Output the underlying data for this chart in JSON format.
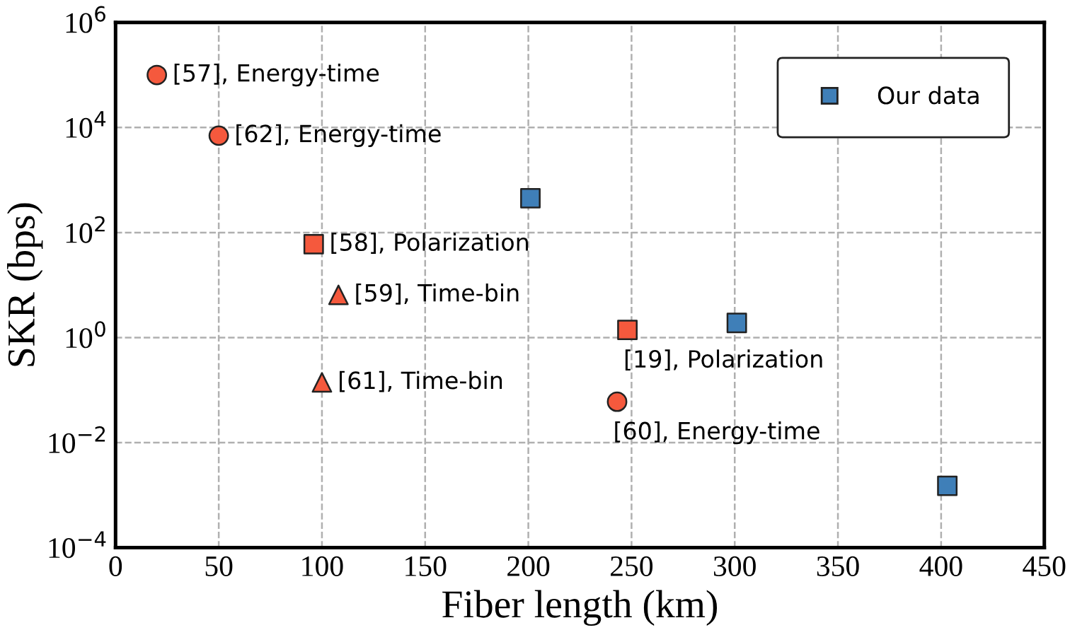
{
  "chart_data": {
    "type": "scatter",
    "xlabel": "Fiber length (km)",
    "ylabel": "SKR (bps)",
    "log": "y",
    "xlim": [
      0,
      450
    ],
    "xticks": [
      0,
      50,
      100,
      150,
      200,
      250,
      300,
      350,
      400,
      450
    ],
    "ylim": [
      0.0001,
      1000000
    ],
    "yticks": [
      {
        "value": 0.0001,
        "label": "10$^{−4}$"
      },
      {
        "value": 0.01,
        "label": "10$^{−2}$"
      },
      {
        "value": 1,
        "label": "10$^{0}$"
      },
      {
        "value": 100,
        "label": "10$^{2}$"
      },
      {
        "value": 10000,
        "label": "10$^{4}$"
      },
      {
        "value": 1000000,
        "label": "10$^{6}$"
      }
    ],
    "grid": true,
    "legend": "top right",
    "series": [
      {
        "name": "Our data",
        "color": "#3f7fb8",
        "marker": "square",
        "x": [
          201,
          301,
          403
        ],
        "values": [
          450,
          1.9,
          0.0015
        ]
      },
      {
        "color": "#f5593d",
        "marker": "circle",
        "x": [
          20,
          50,
          243
        ],
        "values": [
          100000,
          7000,
          0.06
        ]
      },
      {
        "color": "#f5593d",
        "marker": "square",
        "x": [
          96,
          248
        ],
        "values": [
          60,
          1.4
        ]
      },
      {
        "color": "#f5593d",
        "marker": "triangle",
        "x": [
          108,
          100
        ],
        "values": [
          6.5,
          0.14
        ]
      }
    ],
    "annotations": [
      {
        "text": "[57], Energy-time",
        "x": 20,
        "y": 100000
      },
      {
        "text": "[62], Energy-time",
        "x": 50,
        "y": 7000
      },
      {
        "text": "[58], Polarization",
        "x": 96,
        "y": 60
      },
      {
        "text": "[59], Time-bin",
        "x": 108,
        "y": 6.5
      },
      {
        "text": "[19], Polarization",
        "x": 248,
        "y": 1.4
      },
      {
        "text": "[61], Time-bin",
        "x": 100,
        "y": 0.14
      },
      {
        "text": "[60], Energy-time",
        "x": 243,
        "y": 0.06
      }
    ]
  }
}
